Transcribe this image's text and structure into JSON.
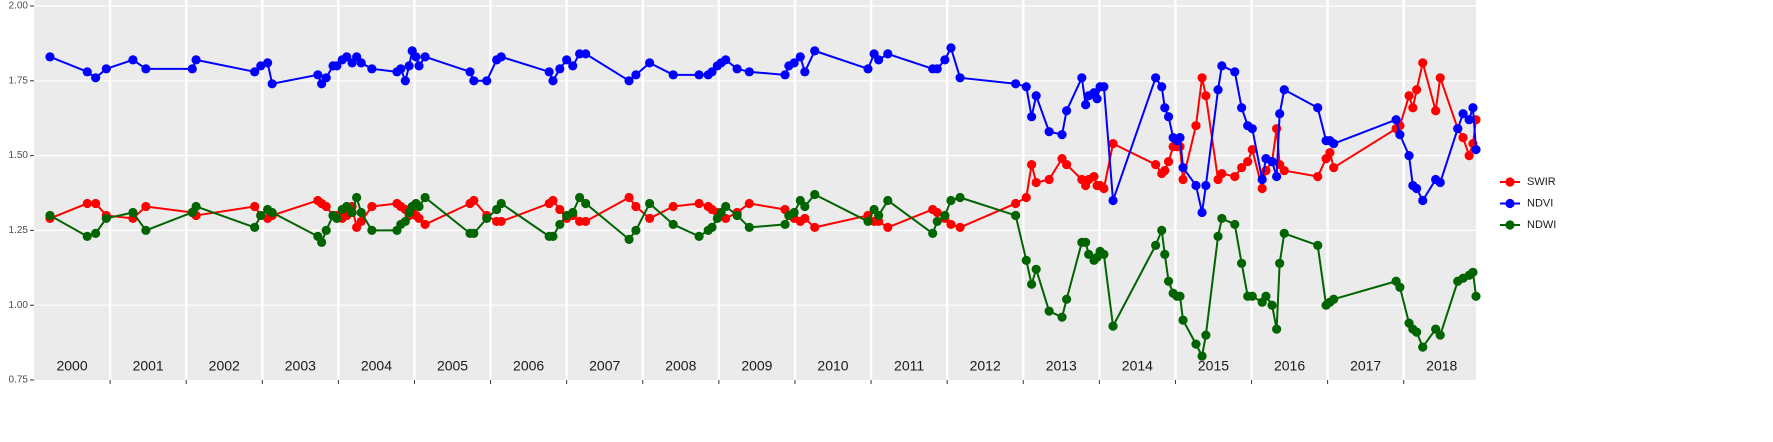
{
  "chart_data": {
    "type": "line",
    "x": [
      2000.21,
      2000.7,
      2000.81,
      2000.95,
      2001.3,
      2001.47,
      2002.08,
      2002.13,
      2002.9,
      2002.98,
      2003.07,
      2003.13,
      2003.73,
      2003.78,
      2003.84,
      2003.93,
      2003.98,
      2004.05,
      2004.11,
      2004.18,
      2004.24,
      2004.3,
      2004.44,
      2004.77,
      2004.82,
      2004.88,
      2004.93,
      2004.97,
      2005.02,
      2005.06,
      2005.14,
      2005.73,
      2005.78,
      2005.95,
      2006.08,
      2006.14,
      2006.77,
      2006.82,
      2006.91,
      2007.0,
      2007.08,
      2007.17,
      2007.25,
      2007.82,
      2007.91,
      2008.09,
      2008.4,
      2008.74,
      2008.86,
      2008.91,
      2008.98,
      2009.03,
      2009.09,
      2009.24,
      2009.4,
      2009.87,
      2009.92,
      2009.99,
      2010.07,
      2010.13,
      2010.26,
      2010.96,
      2011.04,
      2011.1,
      2011.22,
      2011.81,
      2011.87,
      2011.97,
      2012.05,
      2012.17,
      2012.9,
      2013.04,
      2013.11,
      2013.17,
      2013.34,
      2013.51,
      2013.57,
      2013.77,
      2013.82,
      2013.86,
      2013.93,
      2013.97,
      2014.01,
      2014.06,
      2014.18,
      2014.74,
      2014.82,
      2014.86,
      2014.91,
      2014.97,
      2015.02,
      2015.06,
      2015.1,
      2015.27,
      2015.35,
      2015.4,
      2015.56,
      2015.61,
      2015.78,
      2015.87,
      2015.95,
      2016.01,
      2016.14,
      2016.19,
      2016.27,
      2016.33,
      2016.37,
      2016.43,
      2016.87,
      2016.98,
      2017.03,
      2017.08,
      2017.9,
      2017.95,
      2018.07,
      2018.12,
      2018.17,
      2018.25,
      2018.42,
      2018.48,
      2018.71,
      2018.78,
      2018.86,
      2018.91,
      2018.95
    ],
    "series": [
      {
        "name": "SWIR",
        "color": "#ff0000",
        "values": [
          1.29,
          1.34,
          1.34,
          1.3,
          1.29,
          1.33,
          1.31,
          1.3,
          1.33,
          1.3,
          1.29,
          1.3,
          1.35,
          1.34,
          1.33,
          1.3,
          1.3,
          1.29,
          1.3,
          1.33,
          1.26,
          1.28,
          1.33,
          1.34,
          1.33,
          1.32,
          1.3,
          1.32,
          1.3,
          1.29,
          1.27,
          1.34,
          1.35,
          1.3,
          1.28,
          1.28,
          1.34,
          1.35,
          1.32,
          1.29,
          1.3,
          1.28,
          1.28,
          1.36,
          1.33,
          1.29,
          1.33,
          1.34,
          1.33,
          1.32,
          1.31,
          1.3,
          1.29,
          1.31,
          1.34,
          1.32,
          1.3,
          1.29,
          1.28,
          1.29,
          1.26,
          1.3,
          1.28,
          1.28,
          1.26,
          1.32,
          1.31,
          1.29,
          1.27,
          1.26,
          1.34,
          1.36,
          1.47,
          1.41,
          1.42,
          1.49,
          1.47,
          1.42,
          1.4,
          1.42,
          1.43,
          1.4,
          1.4,
          1.39,
          1.54,
          1.47,
          1.44,
          1.45,
          1.48,
          1.53,
          1.53,
          1.53,
          1.42,
          1.6,
          1.76,
          1.7,
          1.42,
          1.44,
          1.43,
          1.46,
          1.48,
          1.52,
          1.39,
          1.45,
          1.48,
          1.59,
          1.47,
          1.45,
          1.43,
          1.49,
          1.51,
          1.46,
          1.59,
          1.6,
          1.7,
          1.66,
          1.72,
          1.81,
          1.65,
          1.76,
          1.59,
          1.56,
          1.5,
          1.54,
          1.62
        ]
      },
      {
        "name": "NDVI",
        "color": "#0000ff",
        "values": [
          1.83,
          1.78,
          1.76,
          1.79,
          1.82,
          1.79,
          1.79,
          1.82,
          1.78,
          1.8,
          1.81,
          1.74,
          1.77,
          1.74,
          1.76,
          1.8,
          1.8,
          1.82,
          1.83,
          1.81,
          1.83,
          1.81,
          1.79,
          1.78,
          1.79,
          1.75,
          1.8,
          1.85,
          1.83,
          1.8,
          1.83,
          1.78,
          1.75,
          1.75,
          1.82,
          1.83,
          1.78,
          1.75,
          1.79,
          1.82,
          1.8,
          1.84,
          1.84,
          1.75,
          1.77,
          1.81,
          1.77,
          1.77,
          1.77,
          1.78,
          1.8,
          1.81,
          1.82,
          1.79,
          1.78,
          1.77,
          1.8,
          1.81,
          1.83,
          1.78,
          1.85,
          1.79,
          1.84,
          1.82,
          1.84,
          1.79,
          1.79,
          1.82,
          1.86,
          1.76,
          1.74,
          1.73,
          1.63,
          1.7,
          1.58,
          1.57,
          1.65,
          1.76,
          1.67,
          1.7,
          1.71,
          1.69,
          1.73,
          1.73,
          1.35,
          1.76,
          1.73,
          1.66,
          1.63,
          1.56,
          1.55,
          1.56,
          1.46,
          1.4,
          1.31,
          1.4,
          1.72,
          1.8,
          1.78,
          1.66,
          1.6,
          1.59,
          1.42,
          1.49,
          1.48,
          1.43,
          1.64,
          1.72,
          1.66,
          1.55,
          1.55,
          1.54,
          1.62,
          1.57,
          1.5,
          1.4,
          1.39,
          1.35,
          1.42,
          1.41,
          1.59,
          1.64,
          1.62,
          1.66,
          1.52
        ]
      },
      {
        "name": "NDWI",
        "color": "#006400",
        "values": [
          1.3,
          1.23,
          1.24,
          1.29,
          1.31,
          1.25,
          1.31,
          1.33,
          1.26,
          1.3,
          1.32,
          1.31,
          1.23,
          1.21,
          1.25,
          1.3,
          1.29,
          1.32,
          1.33,
          1.31,
          1.36,
          1.31,
          1.25,
          1.25,
          1.27,
          1.28,
          1.31,
          1.33,
          1.34,
          1.33,
          1.36,
          1.24,
          1.24,
          1.29,
          1.32,
          1.34,
          1.23,
          1.23,
          1.27,
          1.3,
          1.31,
          1.36,
          1.34,
          1.22,
          1.25,
          1.34,
          1.27,
          1.23,
          1.25,
          1.26,
          1.29,
          1.31,
          1.33,
          1.3,
          1.26,
          1.27,
          1.3,
          1.31,
          1.35,
          1.33,
          1.37,
          1.28,
          1.32,
          1.3,
          1.35,
          1.24,
          1.28,
          1.3,
          1.35,
          1.36,
          1.3,
          1.15,
          1.07,
          1.12,
          0.98,
          0.96,
          1.02,
          1.21,
          1.21,
          1.17,
          1.15,
          1.16,
          1.18,
          1.17,
          0.93,
          1.2,
          1.25,
          1.17,
          1.08,
          1.04,
          1.03,
          1.03,
          0.95,
          0.87,
          0.83,
          0.9,
          1.23,
          1.29,
          1.27,
          1.14,
          1.03,
          1.03,
          1.01,
          1.03,
          1.0,
          0.92,
          1.14,
          1.24,
          1.2,
          1.0,
          1.01,
          1.02,
          1.08,
          1.06,
          0.94,
          0.92,
          0.91,
          0.86,
          0.92,
          0.9,
          1.08,
          1.09,
          1.1,
          1.11,
          1.03
        ]
      }
    ],
    "xlim": [
      2000,
      2018.95
    ],
    "xticks": [
      {
        "value": 2000.5,
        "label": "2000"
      },
      {
        "value": 2001.5,
        "label": "2001"
      },
      {
        "value": 2002.5,
        "label": "2002"
      },
      {
        "value": 2003.5,
        "label": "2003"
      },
      {
        "value": 2004.5,
        "label": "2004"
      },
      {
        "value": 2005.5,
        "label": "2005"
      },
      {
        "value": 2006.5,
        "label": "2006"
      },
      {
        "value": 2007.5,
        "label": "2007"
      },
      {
        "value": 2008.5,
        "label": "2008"
      },
      {
        "value": 2009.5,
        "label": "2009"
      },
      {
        "value": 2010.5,
        "label": "2010"
      },
      {
        "value": 2011.5,
        "label": "2011"
      },
      {
        "value": 2012.5,
        "label": "2012"
      },
      {
        "value": 2013.5,
        "label": "2013"
      },
      {
        "value": 2014.5,
        "label": "2014"
      },
      {
        "value": 2015.5,
        "label": "2015"
      },
      {
        "value": 2016.5,
        "label": "2016"
      },
      {
        "value": 2017.5,
        "label": "2017"
      },
      {
        "value": 2018.5,
        "label": "2018"
      }
    ],
    "xgrid": [
      2001,
      2002,
      2003,
      2004,
      2005,
      2006,
      2007,
      2008,
      2009,
      2010,
      2011,
      2012,
      2013,
      2014,
      2015,
      2016,
      2017,
      2018
    ],
    "ylim": [
      0.75,
      2.0
    ],
    "yticks": [
      0.75,
      {
        "value": 1,
        "label": "1.00"
      },
      1.25,
      {
        "value": 1.5,
        "label": "1.50"
      },
      1.75,
      {
        "value": 2,
        "label": "2.00"
      }
    ],
    "grid": true,
    "legend": "right"
  }
}
